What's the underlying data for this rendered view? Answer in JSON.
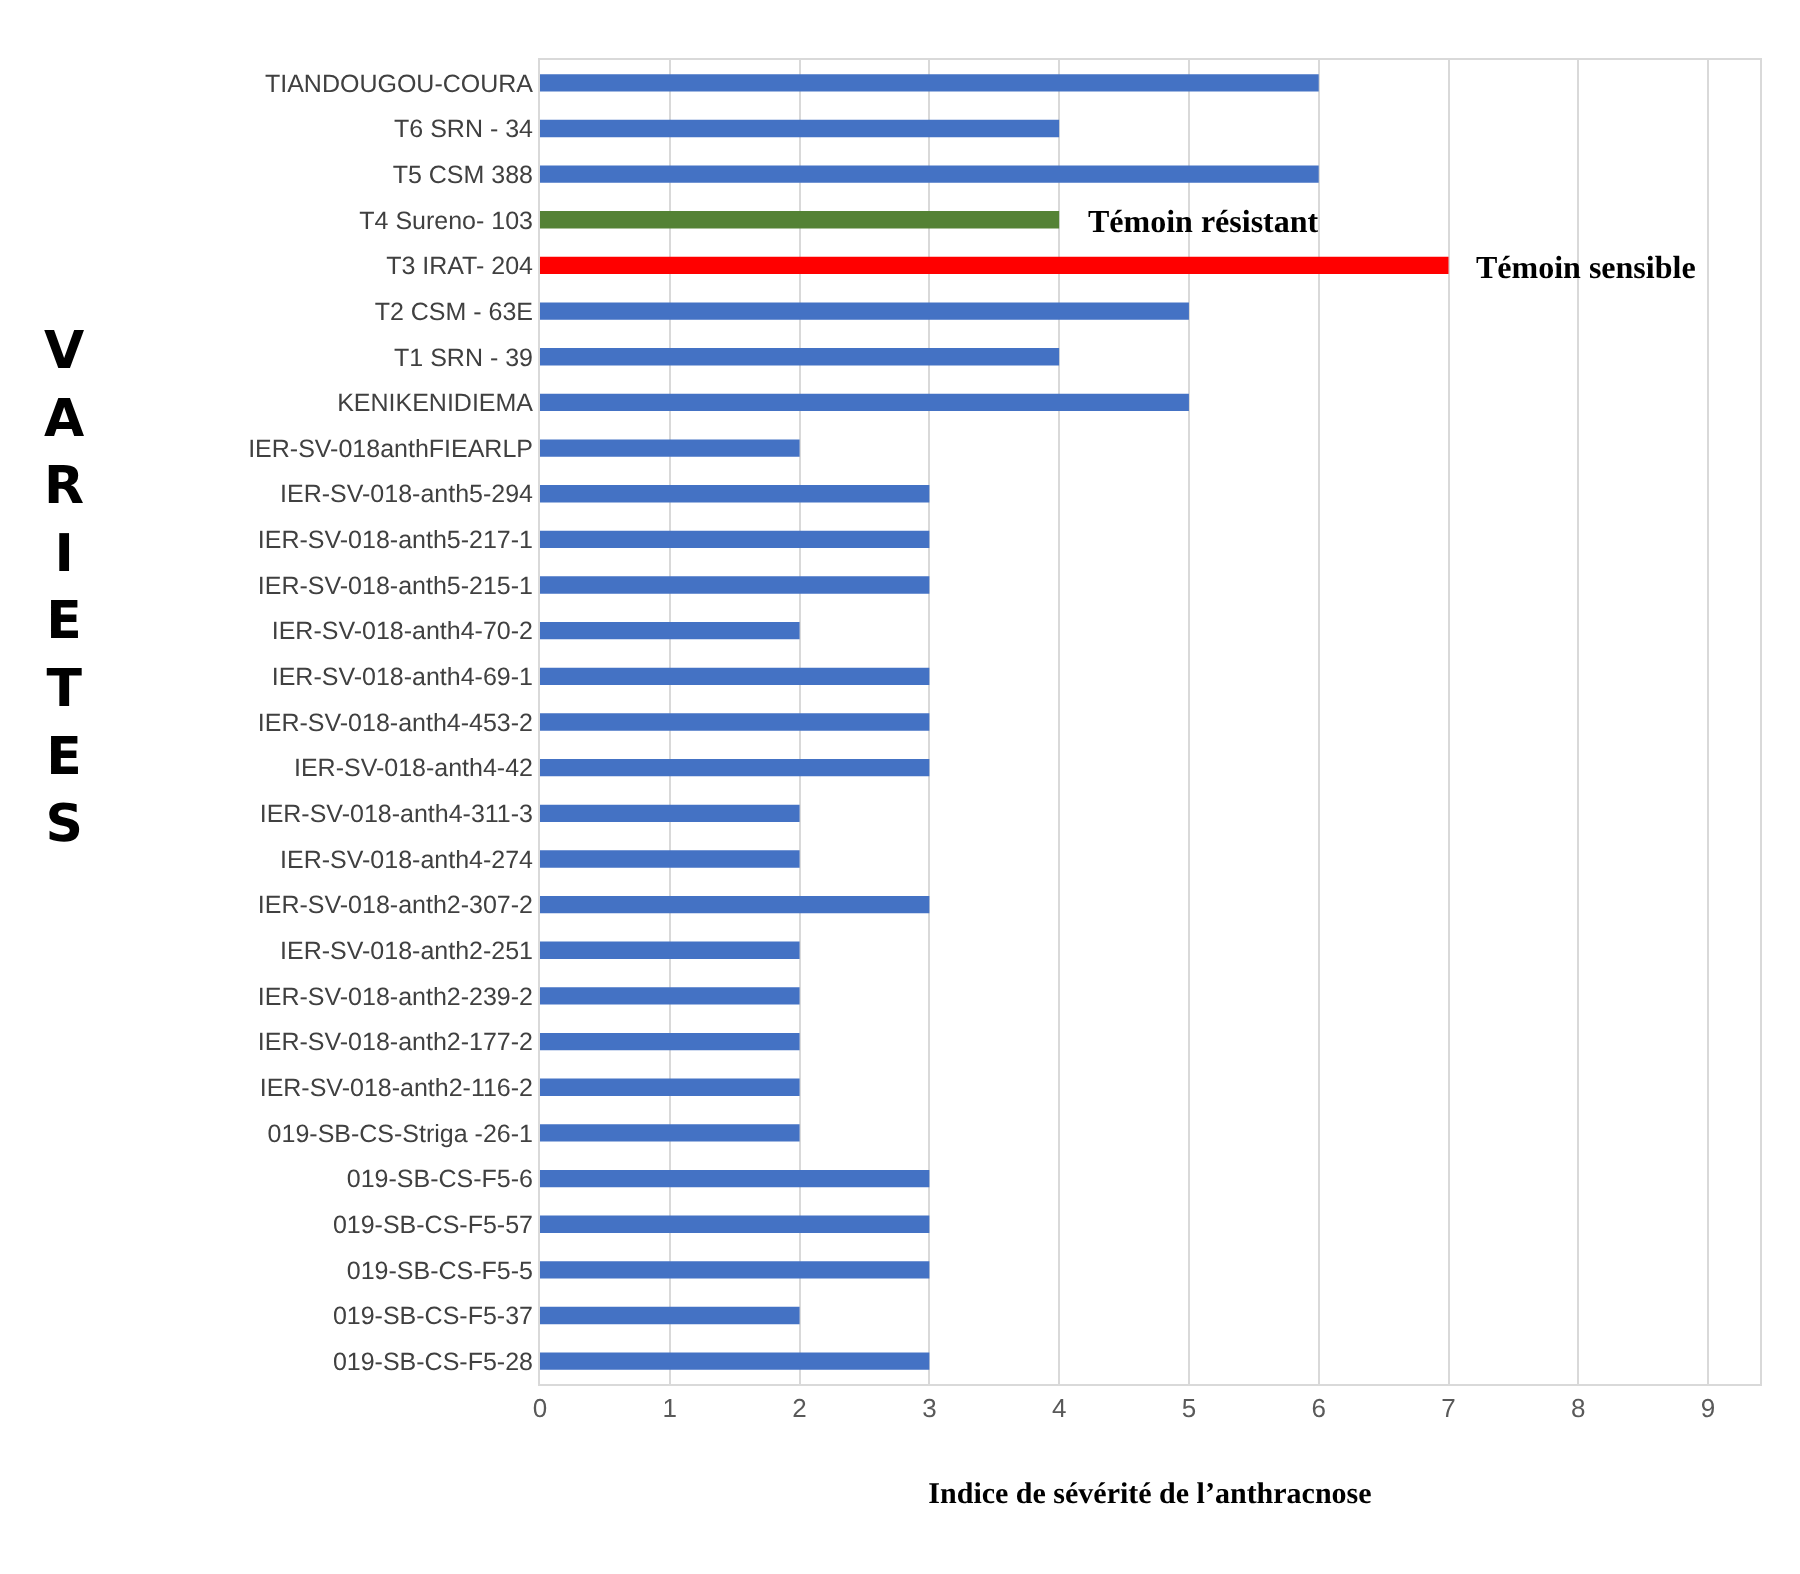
{
  "chart_data": {
    "type": "bar",
    "orientation": "horizontal",
    "xlabel": "Indice de sévérité de l’anthracnose",
    "ylabel": "VARIETES",
    "categories": [
      "TIANDOUGOU-COURA",
      "T6 SRN - 34",
      "T5 CSM 388",
      "T4 Sureno- 103",
      "T3 IRAT- 204",
      "T2 CSM - 63E",
      "T1 SRN - 39",
      "KENIKENIDIEMA",
      "IER-SV-018anthFIEARLP",
      "IER-SV-018-anth5-294",
      "IER-SV-018-anth5-217-1",
      "IER-SV-018-anth5-215-1",
      "IER-SV-018-anth4-70-2",
      "IER-SV-018-anth4-69-1",
      "IER-SV-018-anth4-453-2",
      "IER-SV-018-anth4-42",
      "IER-SV-018-anth4-311-3",
      "IER-SV-018-anth4-274",
      "IER-SV-018-anth2-307-2",
      "IER-SV-018-anth2-251",
      "IER-SV-018-anth2-239-2",
      "IER-SV-018-anth2-177-2",
      "IER-SV-018-anth2-116-2",
      "019-SB-CS-Striga -26-1",
      "019-SB-CS-F5-6",
      "019-SB-CS-F5-57",
      "019-SB-CS-F5-5",
      "019-SB-CS-F5-37",
      "019-SB-CS-F5-28"
    ],
    "values": [
      6,
      4,
      6,
      4,
      7,
      5,
      4,
      5,
      2,
      3,
      3,
      3,
      2,
      3,
      3,
      3,
      2,
      2,
      3,
      2,
      2,
      2,
      2,
      2,
      3,
      3,
      3,
      2,
      3
    ],
    "colors": [
      "#4472c4",
      "#4472c4",
      "#4472c4",
      "#548235",
      "#ff0000",
      "#4472c4",
      "#4472c4",
      "#4472c4",
      "#4472c4",
      "#4472c4",
      "#4472c4",
      "#4472c4",
      "#4472c4",
      "#4472c4",
      "#4472c4",
      "#4472c4",
      "#4472c4",
      "#4472c4",
      "#4472c4",
      "#4472c4",
      "#4472c4",
      "#4472c4",
      "#4472c4",
      "#4472c4",
      "#4472c4",
      "#4472c4",
      "#4472c4",
      "#4472c4",
      "#4472c4"
    ],
    "xlim": [
      0,
      9.4
    ],
    "xticks": [
      0,
      1,
      2,
      3,
      4,
      5,
      6,
      7,
      8,
      9
    ],
    "grid": "x",
    "annotations": [
      {
        "text": "Témoin résistant",
        "x": 4,
        "y": "T4 Sureno- 103"
      },
      {
        "text": "Témoin sensible",
        "x": 7,
        "y": "T3 IRAT- 204"
      }
    ]
  }
}
